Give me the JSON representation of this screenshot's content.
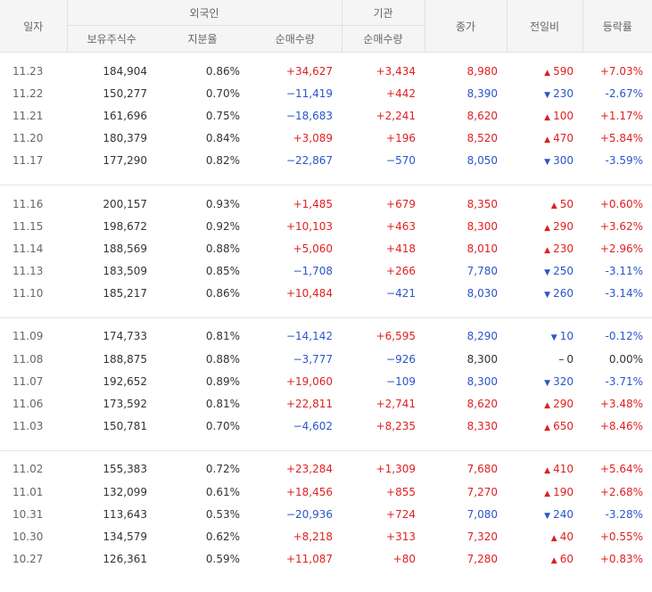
{
  "header": {
    "date": "일자",
    "foreign": "외국인",
    "institution": "기관",
    "holdings": "보유주식수",
    "ratio": "지분율",
    "foreign_net": "순매수량",
    "inst_net": "순매수량",
    "close": "종가",
    "change": "전일비",
    "rate": "등락률"
  },
  "colors": {
    "up": "#e01f1f",
    "down": "#2a55c9",
    "flat": "#333333"
  },
  "groups": [
    [
      {
        "date": "11.23",
        "hold": "184,904",
        "ratio": "0.86%",
        "fnet": "+34,627",
        "inet": "+3,434",
        "close": "8,980",
        "chg": "590",
        "dir": "up",
        "rate": "+7.03%"
      },
      {
        "date": "11.22",
        "hold": "150,277",
        "ratio": "0.70%",
        "fnet": "−11,419",
        "inet": "+442",
        "close": "8,390",
        "chg": "230",
        "dir": "down",
        "rate": "-2.67%"
      },
      {
        "date": "11.21",
        "hold": "161,696",
        "ratio": "0.75%",
        "fnet": "−18,683",
        "inet": "+2,241",
        "close": "8,620",
        "chg": "100",
        "dir": "up",
        "rate": "+1.17%"
      },
      {
        "date": "11.20",
        "hold": "180,379",
        "ratio": "0.84%",
        "fnet": "+3,089",
        "inet": "+196",
        "close": "8,520",
        "chg": "470",
        "dir": "up",
        "rate": "+5.84%"
      },
      {
        "date": "11.17",
        "hold": "177,290",
        "ratio": "0.82%",
        "fnet": "−22,867",
        "inet": "−570",
        "close": "8,050",
        "chg": "300",
        "dir": "down",
        "rate": "-3.59%"
      }
    ],
    [
      {
        "date": "11.16",
        "hold": "200,157",
        "ratio": "0.93%",
        "fnet": "+1,485",
        "inet": "+679",
        "close": "8,350",
        "chg": "50",
        "dir": "up",
        "rate": "+0.60%"
      },
      {
        "date": "11.15",
        "hold": "198,672",
        "ratio": "0.92%",
        "fnet": "+10,103",
        "inet": "+463",
        "close": "8,300",
        "chg": "290",
        "dir": "up",
        "rate": "+3.62%"
      },
      {
        "date": "11.14",
        "hold": "188,569",
        "ratio": "0.88%",
        "fnet": "+5,060",
        "inet": "+418",
        "close": "8,010",
        "chg": "230",
        "dir": "up",
        "rate": "+2.96%"
      },
      {
        "date": "11.13",
        "hold": "183,509",
        "ratio": "0.85%",
        "fnet": "−1,708",
        "inet": "+266",
        "close": "7,780",
        "chg": "250",
        "dir": "down",
        "rate": "-3.11%"
      },
      {
        "date": "11.10",
        "hold": "185,217",
        "ratio": "0.86%",
        "fnet": "+10,484",
        "inet": "−421",
        "close": "8,030",
        "chg": "260",
        "dir": "down",
        "rate": "-3.14%"
      }
    ],
    [
      {
        "date": "11.09",
        "hold": "174,733",
        "ratio": "0.81%",
        "fnet": "−14,142",
        "inet": "+6,595",
        "close": "8,290",
        "chg": "10",
        "dir": "down",
        "rate": "-0.12%"
      },
      {
        "date": "11.08",
        "hold": "188,875",
        "ratio": "0.88%",
        "fnet": "−3,777",
        "inet": "−926",
        "close": "8,300",
        "chg": "0",
        "dir": "flat",
        "rate": "0.00%"
      },
      {
        "date": "11.07",
        "hold": "192,652",
        "ratio": "0.89%",
        "fnet": "+19,060",
        "inet": "−109",
        "close": "8,300",
        "chg": "320",
        "dir": "down",
        "rate": "-3.71%"
      },
      {
        "date": "11.06",
        "hold": "173,592",
        "ratio": "0.81%",
        "fnet": "+22,811",
        "inet": "+2,741",
        "close": "8,620",
        "chg": "290",
        "dir": "up",
        "rate": "+3.48%"
      },
      {
        "date": "11.03",
        "hold": "150,781",
        "ratio": "0.70%",
        "fnet": "−4,602",
        "inet": "+8,235",
        "close": "8,330",
        "chg": "650",
        "dir": "up",
        "rate": "+8.46%"
      }
    ],
    [
      {
        "date": "11.02",
        "hold": "155,383",
        "ratio": "0.72%",
        "fnet": "+23,284",
        "inet": "+1,309",
        "close": "7,680",
        "chg": "410",
        "dir": "up",
        "rate": "+5.64%"
      },
      {
        "date": "11.01",
        "hold": "132,099",
        "ratio": "0.61%",
        "fnet": "+18,456",
        "inet": "+855",
        "close": "7,270",
        "chg": "190",
        "dir": "up",
        "rate": "+2.68%"
      },
      {
        "date": "10.31",
        "hold": "113,643",
        "ratio": "0.53%",
        "fnet": "−20,936",
        "inet": "+724",
        "close": "7,080",
        "chg": "240",
        "dir": "down",
        "rate": "-3.28%"
      },
      {
        "date": "10.30",
        "hold": "134,579",
        "ratio": "0.62%",
        "fnet": "+8,218",
        "inet": "+313",
        "close": "7,320",
        "chg": "40",
        "dir": "up",
        "rate": "+0.55%"
      },
      {
        "date": "10.27",
        "hold": "126,361",
        "ratio": "0.59%",
        "fnet": "+11,087",
        "inet": "+80",
        "close": "7,280",
        "chg": "60",
        "dir": "up",
        "rate": "+0.83%"
      }
    ]
  ]
}
